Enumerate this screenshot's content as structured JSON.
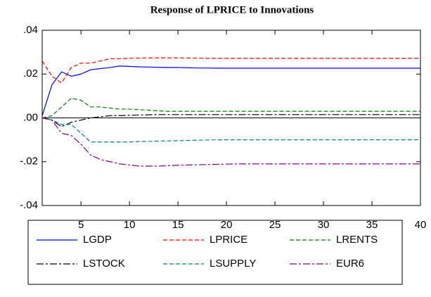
{
  "chart_data": {
    "type": "line",
    "title": "Response of LPRICE to Innovations",
    "x": [
      1,
      2,
      3,
      4,
      5,
      6,
      7,
      8,
      9,
      10,
      11,
      12,
      13,
      14,
      15,
      16,
      17,
      18,
      19,
      20,
      21,
      22,
      23,
      24,
      25,
      26,
      27,
      28,
      29,
      30,
      31,
      32,
      33,
      34,
      35,
      36,
      37,
      38,
      39,
      40
    ],
    "xlim": [
      1,
      40
    ],
    "xticks": [
      5,
      10,
      15,
      20,
      25,
      30,
      35,
      40
    ],
    "ylim": [
      -0.04,
      0.04
    ],
    "yticks": [
      {
        "value": -0.04,
        "label": "-.04"
      },
      {
        "value": -0.02,
        "label": "-.02"
      },
      {
        "value": 0,
        "label": ".00"
      },
      {
        "value": 0.02,
        "label": ".02"
      },
      {
        "value": 0.04,
        "label": ".04"
      }
    ],
    "series": [
      {
        "name": "LGDP",
        "color": "#0000ff",
        "style": "solid",
        "values": [
          0.001,
          0.015,
          0.021,
          0.019,
          0.02,
          0.022,
          0.0225,
          0.023,
          0.0237,
          0.0235,
          0.0233,
          0.0232,
          0.0231,
          0.023,
          0.023,
          0.0229,
          0.0228,
          0.0228,
          0.0227,
          0.0227,
          0.0227,
          0.0227,
          0.0227,
          0.0227,
          0.0227,
          0.0227,
          0.0227,
          0.0227,
          0.0227,
          0.0227,
          0.0227,
          0.0227,
          0.0227,
          0.0227,
          0.0227,
          0.0227,
          0.0227,
          0.0227,
          0.0227,
          0.0227
        ]
      },
      {
        "name": "LPRICE",
        "color": "#ff0000",
        "style": "dash",
        "values": [
          0.026,
          0.019,
          0.016,
          0.023,
          0.025,
          0.025,
          0.026,
          0.027,
          0.027,
          0.0272,
          0.0273,
          0.0274,
          0.0274,
          0.0274,
          0.0274,
          0.0273,
          0.0273,
          0.0272,
          0.0272,
          0.0272,
          0.0272,
          0.0272,
          0.0272,
          0.0272,
          0.0272,
          0.0272,
          0.0272,
          0.0272,
          0.0272,
          0.0272,
          0.0272,
          0.0272,
          0.0272,
          0.0272,
          0.0272,
          0.0272,
          0.0272,
          0.0272,
          0.0272,
          0.0272
        ]
      },
      {
        "name": "LRENTS",
        "color": "#008000",
        "style": "dash",
        "values": [
          0,
          0.001,
          0.005,
          0.009,
          0.008,
          0.005,
          0.005,
          0.0045,
          0.004,
          0.004,
          0.0038,
          0.0035,
          0.0032,
          0.003,
          0.003,
          0.003,
          0.003,
          0.003,
          0.003,
          0.003,
          0.003,
          0.003,
          0.003,
          0.003,
          0.003,
          0.003,
          0.003,
          0.003,
          0.003,
          0.003,
          0.003,
          0.003,
          0.003,
          0.003,
          0.003,
          0.003,
          0.003,
          0.003,
          0.003,
          0.003
        ]
      },
      {
        "name": "LSTOCK",
        "color": "#000000",
        "style": "dashdot",
        "values": [
          0,
          -0.001,
          -0.004,
          -0.002,
          -0.001,
          0,
          0.0005,
          0.001,
          0.001,
          0.0012,
          0.0013,
          0.0014,
          0.0015,
          0.0015,
          0.0015,
          0.0015,
          0.0015,
          0.0015,
          0.0015,
          0.0015,
          0.0015,
          0.0015,
          0.0015,
          0.0015,
          0.0015,
          0.0015,
          0.0015,
          0.0015,
          0.0015,
          0.0015,
          0.0015,
          0.0015,
          0.0015,
          0.0015,
          0.0015,
          0.0015,
          0.0015,
          0.0015,
          0.0015,
          0.0015
        ]
      },
      {
        "name": "LSUPPLY",
        "color": "#008080",
        "style": "dash",
        "values": [
          0,
          -0.001,
          -0.003,
          -0.003,
          -0.007,
          -0.011,
          -0.011,
          -0.011,
          -0.011,
          -0.011,
          -0.0108,
          -0.0107,
          -0.0106,
          -0.0105,
          -0.0104,
          -0.0103,
          -0.0102,
          -0.0101,
          -0.01,
          -0.01,
          -0.01,
          -0.01,
          -0.01,
          -0.01,
          -0.01,
          -0.01,
          -0.01,
          -0.01,
          -0.01,
          -0.01,
          -0.01,
          -0.01,
          -0.01,
          -0.01,
          -0.01,
          -0.01,
          -0.01,
          -0.01,
          -0.01,
          -0.01
        ]
      },
      {
        "name": "EUR6",
        "color": "#800080",
        "style": "dashdot",
        "values": [
          0,
          -0.001,
          -0.007,
          -0.008,
          -0.012,
          -0.017,
          -0.019,
          -0.02,
          -0.021,
          -0.0215,
          -0.022,
          -0.022,
          -0.022,
          -0.0218,
          -0.0216,
          -0.0215,
          -0.0214,
          -0.0213,
          -0.0212,
          -0.0211,
          -0.021,
          -0.021,
          -0.021,
          -0.021,
          -0.021,
          -0.021,
          -0.021,
          -0.021,
          -0.021,
          -0.021,
          -0.021,
          -0.021,
          -0.021,
          -0.021,
          -0.021,
          -0.021,
          -0.021,
          -0.021,
          -0.021,
          -0.021
        ]
      }
    ]
  }
}
